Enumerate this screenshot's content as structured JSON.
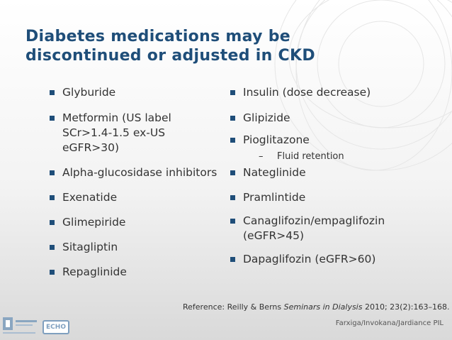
{
  "slide": {
    "title_line1": "Diabetes medications may be",
    "title_line2": "discontinued or adjusted in CKD",
    "left_column": [
      {
        "lines": [
          "Glyburide"
        ]
      },
      {
        "lines": [
          "Metformin (US label",
          "SCr>1.4-1.5 ex-US",
          "eGFR>30)"
        ]
      },
      {
        "lines": [
          "Alpha-glucosidase inhibitors"
        ]
      },
      {
        "lines": [
          "Exenatide"
        ]
      },
      {
        "lines": [
          "Glimepiride"
        ]
      },
      {
        "lines": [
          "Sitagliptin"
        ]
      },
      {
        "lines": [
          "Repaglinide"
        ]
      }
    ],
    "right_column": [
      {
        "lines": [
          "Insulin (dose decrease)"
        ]
      },
      {
        "lines": [
          "Glipizide"
        ]
      },
      {
        "lines": [
          "Pioglitazone"
        ],
        "subitem": "Fluid retention"
      },
      {
        "lines": [
          "Nateglinide"
        ]
      },
      {
        "lines": [
          "Pramlintide"
        ]
      },
      {
        "lines": [
          "Canaglifozin/empaglifozin",
          "(eGFR>45)"
        ]
      },
      {
        "lines": [
          "Dapaglifozin (eGFR>60)"
        ]
      }
    ],
    "subitem_dash": "–",
    "reference": {
      "prefix": "Reference: Reilly & Berns ",
      "journal": "Seminars in Dialysis",
      "suffix": "  2010; 23(2):163–168."
    },
    "pil_note": "Farxiga/Invokana/Jardiance PIL",
    "logo_echo_text": "ECHO"
  },
  "colors": {
    "title": "#1f4e79",
    "bullet": "#1f4e79",
    "body_text": "#333333"
  },
  "icons": {
    "bullet": "square-bullet-icon",
    "logo_unm": "unm-logo",
    "logo_echo": "echo-logo"
  }
}
